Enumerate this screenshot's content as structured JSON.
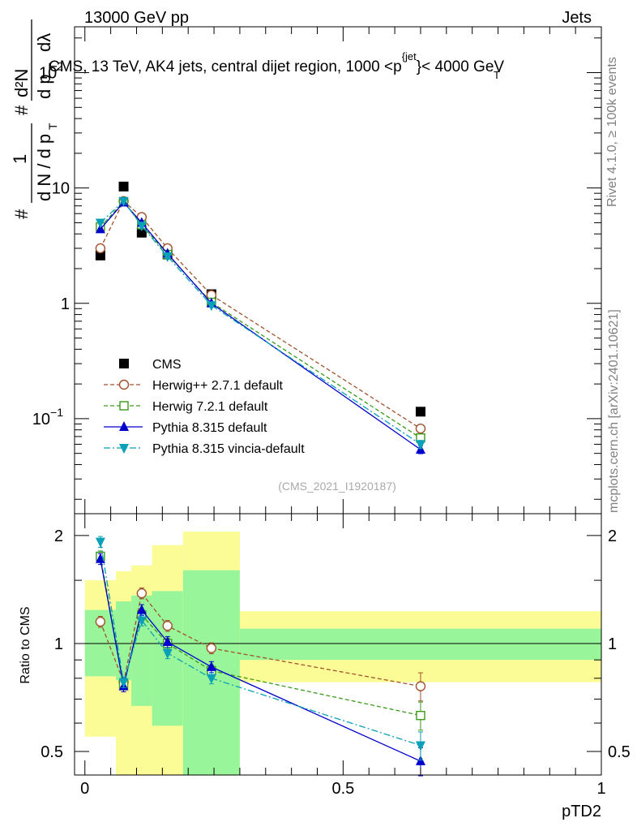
{
  "header": {
    "left": "13000 GeV pp",
    "right": "Jets"
  },
  "side_labels": {
    "rivet": "Rivet 4.1.0, ≥ 100k events",
    "mcplots": "mcplots.cern.ch [arXiv:2401.10621]"
  },
  "chart_data": [
    {
      "type": "line",
      "title": "CMS, 13 TeV, AK4 jets, central dijet region, 1000 <p_T^{jet}< 4000 GeV",
      "title_parts": {
        "main": "CMS, 13 TeV, AK4 jets, central dijet region, 1000 <p",
        "sup": "{jet",
        "sub": "T",
        "end": "}< 4000 GeV"
      },
      "ylabel": "1/(dN/dp_T) d^2N/(dp_T dλ)",
      "ylabel_parts": {
        "frac_top": "1",
        "frac_bottom": "d N / d p",
        "sub_t": "T",
        "d2n": "d²N",
        "dpt": "d p",
        "dlam": "dλ",
        "hash": "#"
      },
      "yscale": "log",
      "ylim": [
        0.015,
        250
      ],
      "yticks": [
        {
          "value": 100,
          "base": "10",
          "exp": "2"
        },
        {
          "value": 10,
          "base": "10",
          "exp": ""
        },
        {
          "value": 1,
          "base": "1",
          "exp": ""
        },
        {
          "value": 0.1,
          "base": "10",
          "exp": "−1"
        }
      ],
      "xlim": [
        -0.02,
        1.0
      ],
      "watermark": "(CMS_2021_I1920187)",
      "legend_position": "lower-left",
      "series": [
        {
          "name": "CMS",
          "color": "#000000",
          "marker": "square-filled",
          "style": "none",
          "x": [
            0.03,
            0.075,
            0.11,
            0.16,
            0.245,
            0.65
          ],
          "values": [
            2.6,
            10.3,
            4.1,
            2.65,
            1.2,
            0.115
          ]
        },
        {
          "name": "Herwig++ 2.7.1 default",
          "color": "#a0522d",
          "marker": "circle-open",
          "style": "dashed",
          "x": [
            0.03,
            0.075,
            0.11,
            0.16,
            0.245,
            0.65
          ],
          "values": [
            3.0,
            7.7,
            5.6,
            3.0,
            1.18,
            0.082
          ]
        },
        {
          "name": "Herwig 7.2.1 default",
          "color": "#3a9a1a",
          "marker": "square-open",
          "style": "dashed",
          "x": [
            0.03,
            0.075,
            0.11,
            0.16,
            0.245,
            0.65
          ],
          "values": [
            4.6,
            7.6,
            4.8,
            2.65,
            1.02,
            0.068
          ]
        },
        {
          "name": "Pythia 8.315 default",
          "color": "#0000cc",
          "marker": "triangle-up",
          "style": "solid",
          "x": [
            0.03,
            0.075,
            0.11,
            0.16,
            0.245,
            0.65
          ],
          "values": [
            4.4,
            7.5,
            5.0,
            2.7,
            1.0,
            0.054
          ]
        },
        {
          "name": "Pythia 8.315 vincia-default",
          "color": "#0aa0b8",
          "marker": "triangle-down",
          "style": "dashdot",
          "x": [
            0.03,
            0.075,
            0.11,
            0.16,
            0.245,
            0.65
          ],
          "values": [
            5.0,
            7.7,
            4.7,
            2.55,
            0.96,
            0.06
          ]
        }
      ]
    },
    {
      "type": "line",
      "title": "",
      "xlabel": "pTD2",
      "ylabel": "Ratio to CMS",
      "yscale": "log",
      "ylim": [
        0.43,
        2.3
      ],
      "yticks": [
        0.5,
        1,
        2
      ],
      "xlim": [
        -0.02,
        1.0
      ],
      "xticks": [
        0,
        0.5,
        1
      ],
      "xtick_labels": [
        "0",
        "0.5",
        "1"
      ],
      "bands": [
        {
          "x0": 0.0,
          "x1": 0.06,
          "inner": [
            0.81,
            1.24
          ],
          "outer": [
            0.55,
            1.5
          ]
        },
        {
          "x0": 0.06,
          "x1": 0.09,
          "inner": [
            0.79,
            1.31
          ],
          "outer": [
            0.4,
            1.59
          ]
        },
        {
          "x0": 0.09,
          "x1": 0.13,
          "inner": [
            0.67,
            1.36
          ],
          "outer": [
            0.37,
            1.65
          ]
        },
        {
          "x0": 0.13,
          "x1": 0.19,
          "inner": [
            0.59,
            1.4
          ],
          "outer": [
            0.33,
            1.88
          ]
        },
        {
          "x0": 0.19,
          "x1": 0.3,
          "inner": [
            0.42,
            1.6
          ],
          "outer": [
            0.34,
            2.05
          ]
        },
        {
          "x0": 0.3,
          "x1": 1.0,
          "inner": [
            0.9,
            1.1
          ],
          "outer": [
            0.78,
            1.23
          ]
        }
      ],
      "band_colors": {
        "inner": "#99f599",
        "outer": "#fcfc96"
      },
      "series": [
        {
          "name": "Herwig++ 2.7.1 default",
          "color": "#a0522d",
          "marker": "circle-open",
          "style": "dashed",
          "x": [
            0.03,
            0.075,
            0.11,
            0.16,
            0.245,
            0.65
          ],
          "values": [
            1.15,
            0.78,
            1.38,
            1.12,
            0.97,
            0.76
          ]
        },
        {
          "name": "Herwig 7.2.1 default",
          "color": "#3a9a1a",
          "marker": "square-open",
          "style": "dashed",
          "x": [
            0.03,
            0.075,
            0.11,
            0.16,
            0.245,
            0.65
          ],
          "values": [
            1.75,
            0.77,
            1.2,
            1.0,
            0.84,
            0.63
          ]
        },
        {
          "name": "Pythia 8.315 default",
          "color": "#0000cc",
          "marker": "triangle-up",
          "style": "solid",
          "x": [
            0.03,
            0.075,
            0.11,
            0.16,
            0.245,
            0.65
          ],
          "values": [
            1.72,
            0.76,
            1.24,
            1.01,
            0.86,
            0.47
          ]
        },
        {
          "name": "Pythia 8.315 vincia-default",
          "color": "#0aa0b8",
          "marker": "triangle-down",
          "style": "dashdot",
          "x": [
            0.03,
            0.075,
            0.11,
            0.16,
            0.245,
            0.65
          ],
          "values": [
            1.92,
            0.78,
            1.16,
            0.94,
            0.8,
            0.52
          ]
        }
      ]
    }
  ]
}
